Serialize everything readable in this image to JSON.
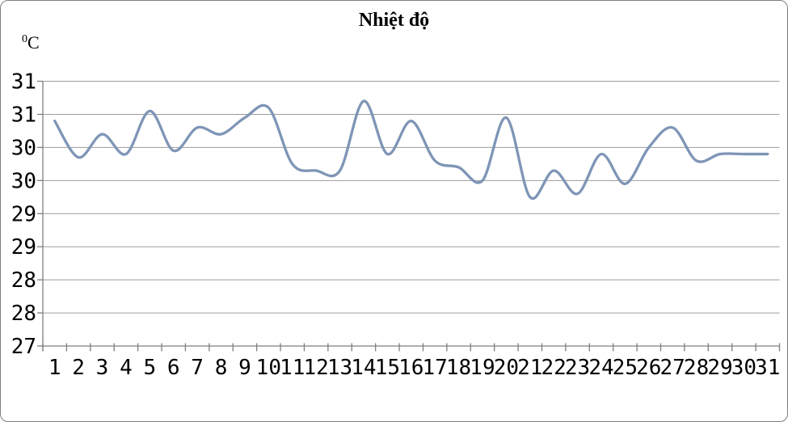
{
  "chart_data": {
    "type": "line",
    "smooth": true,
    "title": "Nhiệt độ",
    "ylabel": "0C",
    "xlabel": "",
    "x": [
      1,
      2,
      3,
      4,
      5,
      6,
      7,
      8,
      9,
      10,
      11,
      12,
      13,
      14,
      15,
      16,
      17,
      18,
      19,
      20,
      21,
      22,
      23,
      24,
      25,
      26,
      27,
      28,
      29,
      30,
      31
    ],
    "values": [
      30.4,
      29.85,
      30.2,
      29.9,
      30.55,
      29.95,
      30.3,
      30.2,
      30.45,
      30.6,
      29.75,
      29.65,
      29.65,
      30.7,
      29.9,
      30.4,
      29.8,
      29.7,
      29.5,
      30.45,
      29.25,
      29.65,
      29.3,
      29.9,
      29.45,
      30.0,
      30.3,
      29.8,
      29.9,
      29.9,
      29.9
    ],
    "ylim": [
      27,
      31
    ],
    "y_tick_interval": 0.5,
    "y_tick_labels_top_to_bottom": [
      "31",
      "31",
      "30",
      "30",
      "29",
      "29",
      "28",
      "28",
      "27"
    ],
    "grid": true,
    "legend": false
  },
  "title": {
    "text": "Nhiệt độ"
  },
  "y_axis_unit": {
    "sup": "0",
    "base": "C"
  },
  "colors": {
    "line": "#7E95B6",
    "grid": "#9C9C9C",
    "axis": "#7F7F7F",
    "border": "#7F7F7F",
    "text": "#000000"
  }
}
